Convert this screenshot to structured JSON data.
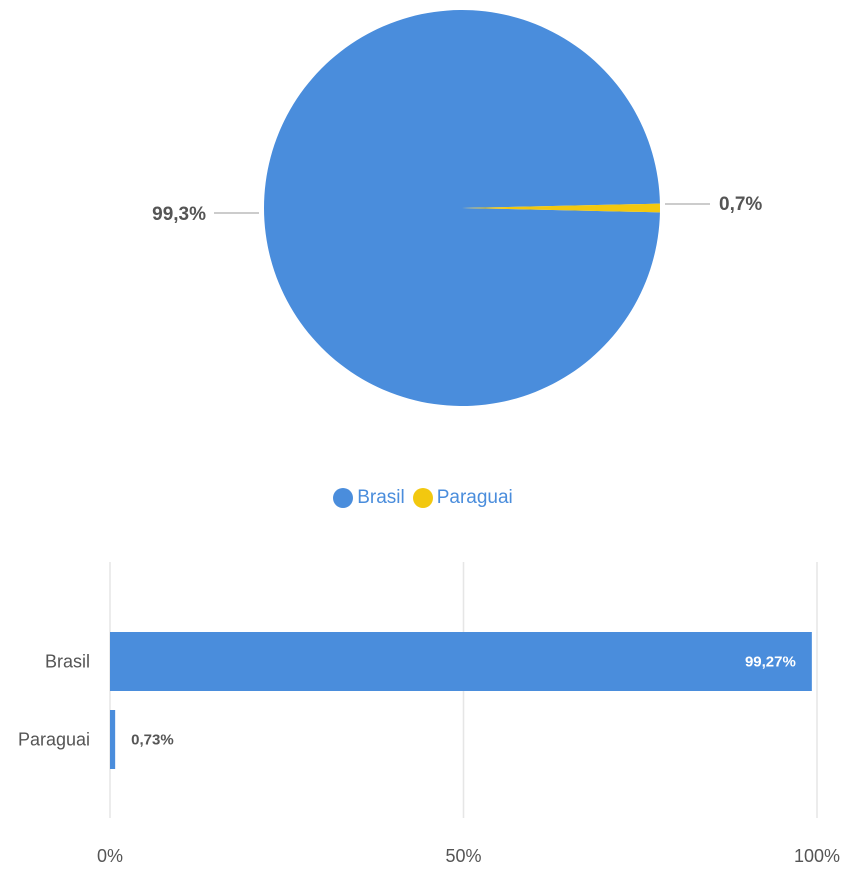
{
  "chart_data": [
    {
      "type": "pie",
      "categories": [
        "Brasil",
        "Paraguai"
      ],
      "values": [
        99.3,
        0.7
      ],
      "labels": [
        "99,3%",
        "0,7%"
      ],
      "colors": [
        "#4a8ddc",
        "#f2c80f"
      ],
      "legend": {
        "placement": "bottom",
        "items": [
          "Brasil",
          "Paraguai"
        ]
      }
    },
    {
      "type": "bar",
      "orientation": "horizontal",
      "categories": [
        "Brasil",
        "Paraguai"
      ],
      "values": [
        99.27,
        0.73
      ],
      "value_labels": [
        "99,27%",
        "0,73%"
      ],
      "color": "#4a8ddc",
      "xlim": [
        0,
        100
      ],
      "xticks": [
        "0%",
        "50%",
        "100%"
      ],
      "grid": true
    }
  ]
}
